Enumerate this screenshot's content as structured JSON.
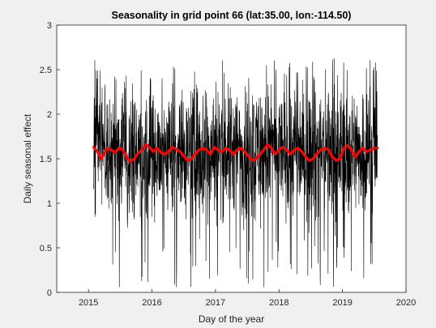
{
  "chart_data": {
    "type": "line",
    "title": "Seasonality in grid point 66 (lat:35.00, lon:-114.50)",
    "xlabel": "Day of the year",
    "ylabel": "Daily seasonal effect",
    "xlim": [
      2014.5,
      2020.0
    ],
    "ylim": [
      0,
      3
    ],
    "xticks": [
      "2015",
      "2016",
      "2017",
      "2018",
      "2019",
      "2020"
    ],
    "yticks": [
      "0",
      "0.5",
      "1",
      "1.5",
      "2",
      "2.5",
      "3"
    ],
    "grid": false,
    "legend": "none",
    "series": [
      {
        "style": "thin-noisy",
        "color": "#000000",
        "x_range": [
          2015.08,
          2019.55
        ],
        "points": 1600,
        "center": 1.6,
        "typical_range": [
          0.4,
          2.4
        ],
        "min": 0.05,
        "max": 2.65
      },
      {
        "style": "thick-smooth",
        "color": "#ff0000",
        "x": [
          2015.08,
          2015.14,
          2015.2,
          2015.26,
          2015.3,
          2015.36,
          2015.42,
          2015.48,
          2015.54,
          2015.6,
          2015.66,
          2015.72,
          2015.78,
          2015.84,
          2015.9,
          2015.96,
          2016.02,
          2016.08,
          2016.14,
          2016.2,
          2016.26,
          2016.32,
          2016.38,
          2016.44,
          2016.5,
          2016.56,
          2016.62,
          2016.68,
          2016.74,
          2016.8,
          2016.86,
          2016.92,
          2016.98,
          2017.04,
          2017.1,
          2017.16,
          2017.22,
          2017.28,
          2017.34,
          2017.4,
          2017.46,
          2017.52,
          2017.58,
          2017.64,
          2017.7,
          2017.76,
          2017.82,
          2017.88,
          2017.94,
          2018.0,
          2018.06,
          2018.12,
          2018.18,
          2018.24,
          2018.3,
          2018.36,
          2018.42,
          2018.48,
          2018.54,
          2018.6,
          2018.66,
          2018.72,
          2018.78,
          2018.84,
          2018.9,
          2018.96,
          2019.02,
          2019.08,
          2019.14,
          2019.2,
          2019.26,
          2019.32,
          2019.38,
          2019.44,
          2019.5,
          2019.55
        ],
        "y": [
          1.63,
          1.58,
          1.5,
          1.57,
          1.62,
          1.6,
          1.57,
          1.62,
          1.6,
          1.52,
          1.47,
          1.5,
          1.56,
          1.6,
          1.66,
          1.63,
          1.58,
          1.62,
          1.57,
          1.55,
          1.58,
          1.63,
          1.61,
          1.58,
          1.53,
          1.48,
          1.5,
          1.55,
          1.6,
          1.62,
          1.6,
          1.55,
          1.63,
          1.6,
          1.58,
          1.62,
          1.6,
          1.55,
          1.6,
          1.62,
          1.58,
          1.53,
          1.48,
          1.5,
          1.55,
          1.6,
          1.66,
          1.62,
          1.55,
          1.6,
          1.63,
          1.6,
          1.55,
          1.6,
          1.62,
          1.58,
          1.52,
          1.48,
          1.5,
          1.56,
          1.6,
          1.62,
          1.6,
          1.52,
          1.48,
          1.5,
          1.62,
          1.65,
          1.6,
          1.52,
          1.58,
          1.62,
          1.58,
          1.6,
          1.62,
          1.62
        ]
      }
    ]
  }
}
